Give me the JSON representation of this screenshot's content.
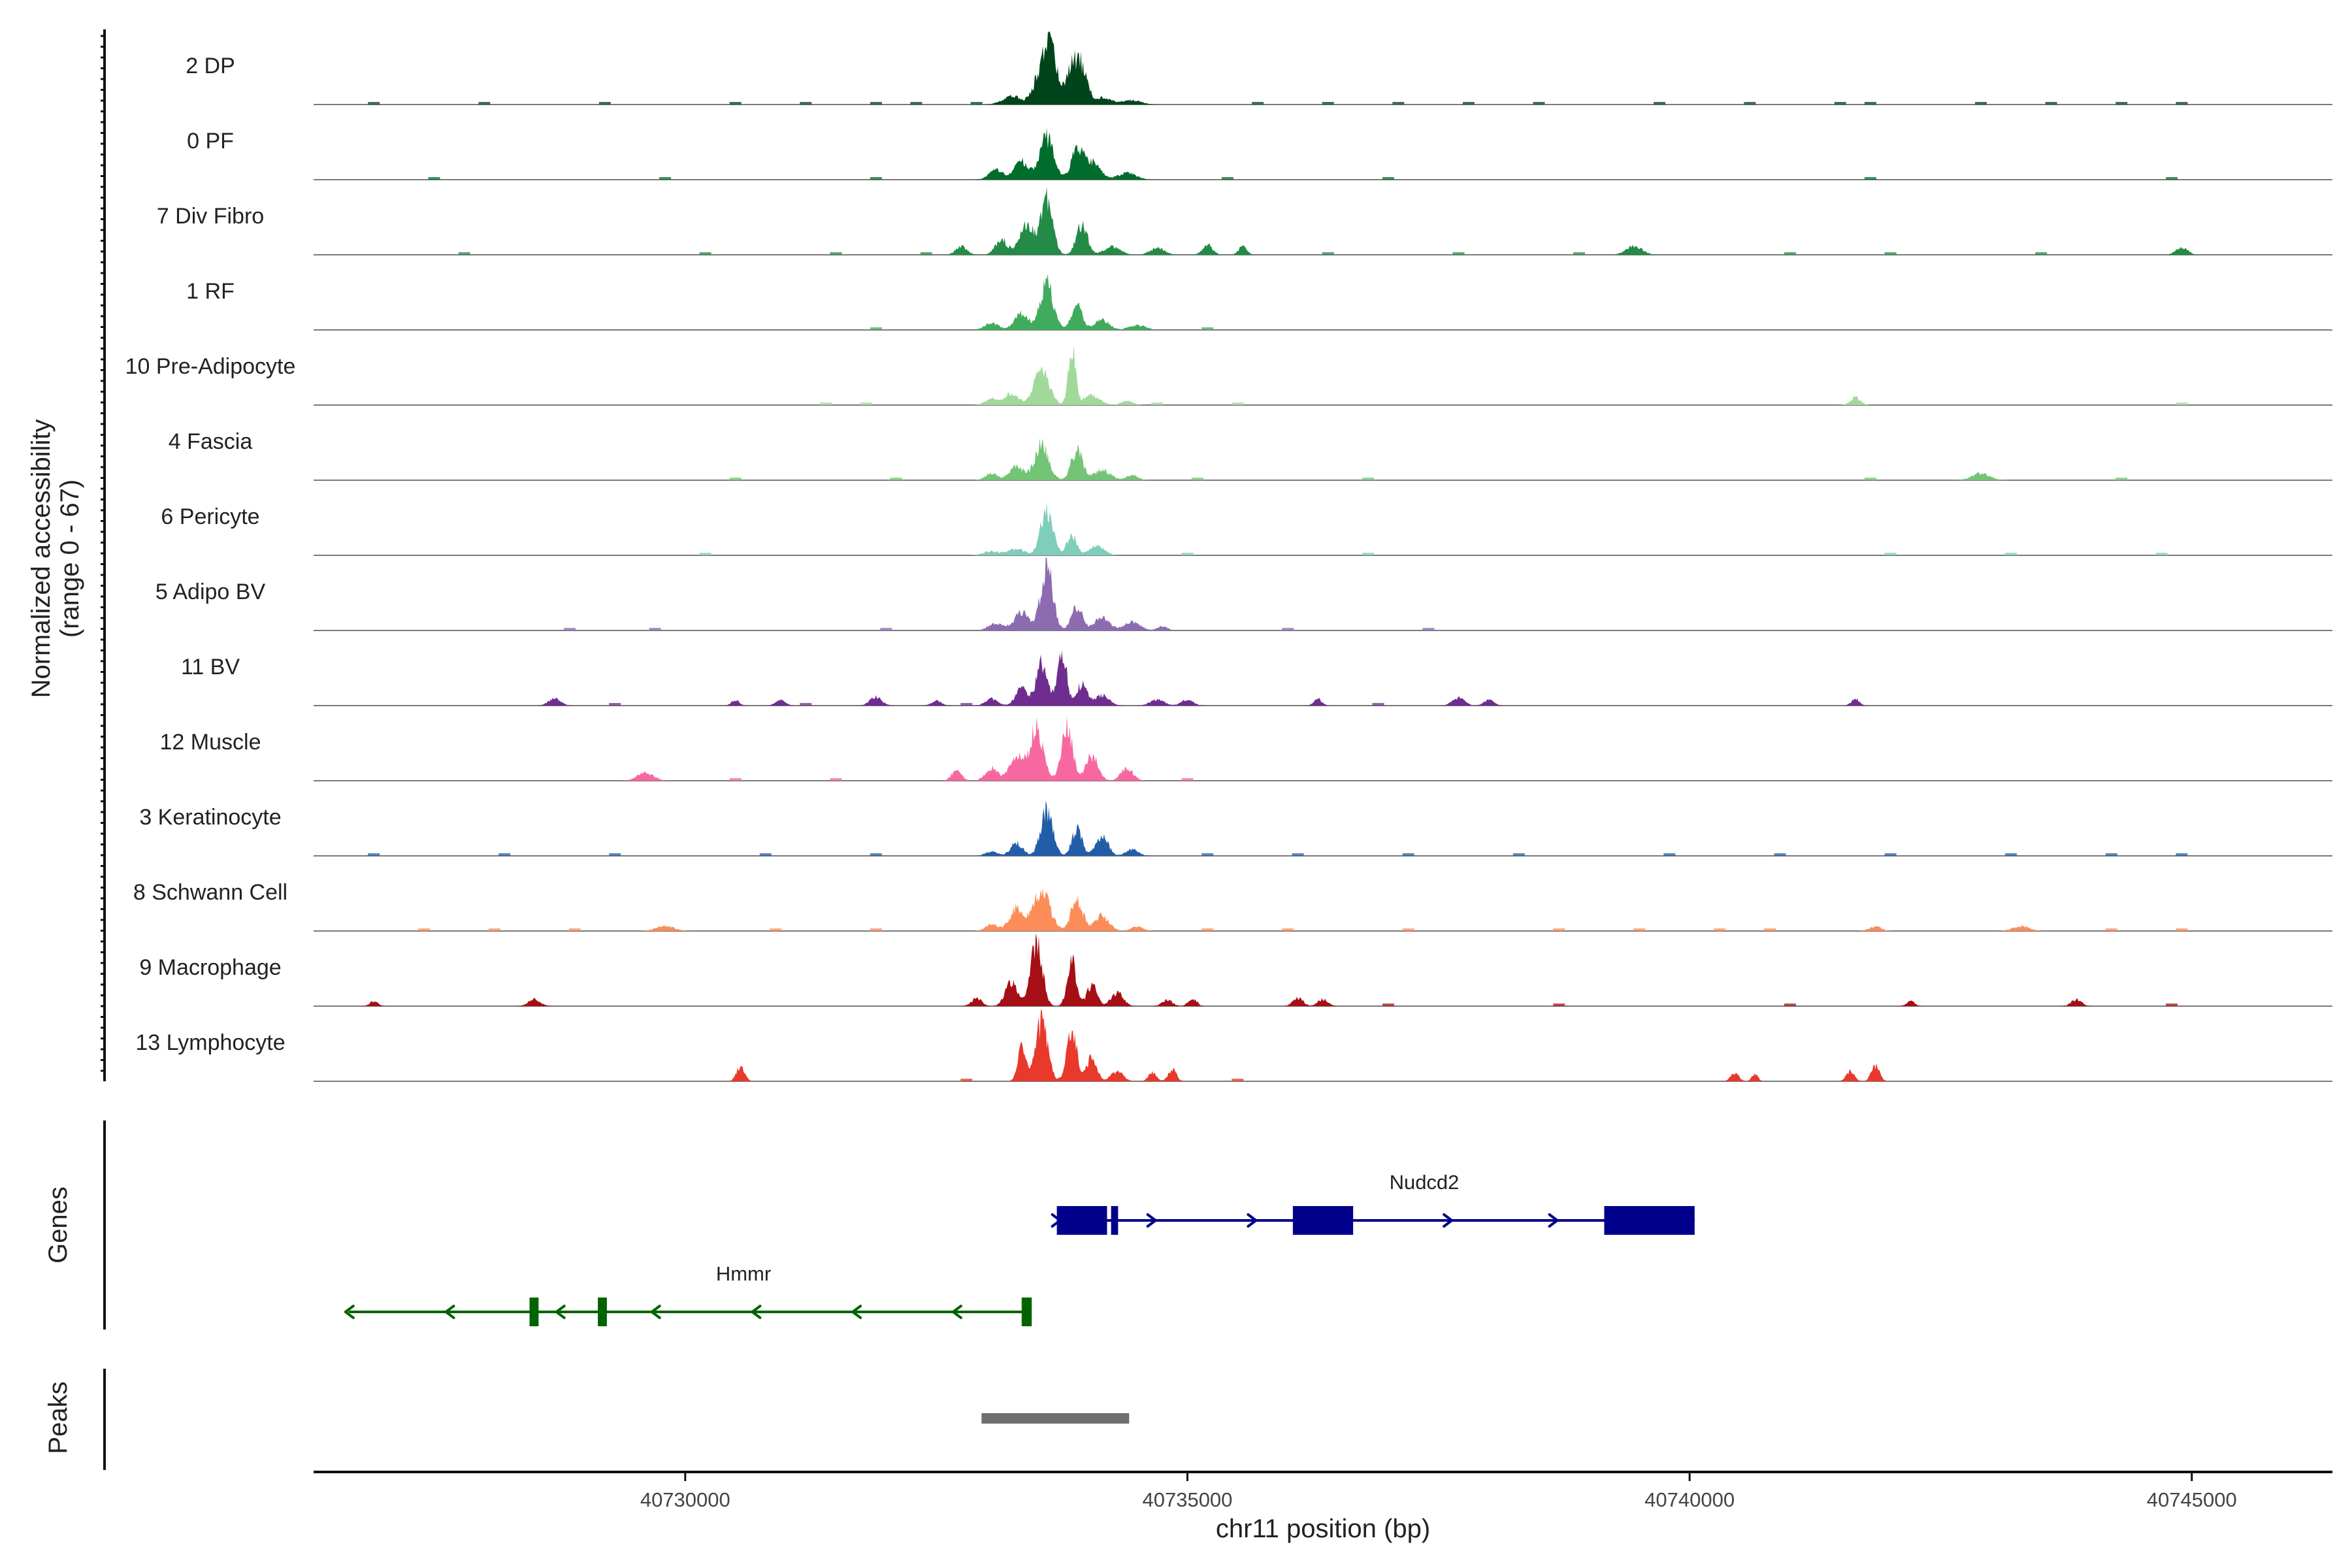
{
  "chart_data": {
    "type": "area",
    "title": "",
    "ylabel_line1": "Normalized accessibility",
    "ylabel_line2": "(range 0 - 67)",
    "y_range": [
      0,
      67
    ],
    "xlabel": "chr11 position (bp)",
    "chromosome": "chr11",
    "xlim": [
      40726300,
      40746400
    ],
    "x_ticks": [
      40730000,
      40735000,
      40740000,
      40745000
    ],
    "x_tick_labels": [
      "40730000",
      "40735000",
      "40740000",
      "40745000"
    ],
    "genes_label": "Genes",
    "peaks_label": "Peaks",
    "tracks": [
      {
        "name": "2 DP",
        "color": "#00441b",
        "peaks": [
          [
            40733550,
            40,
            75
          ],
          [
            40733650,
            58,
            60
          ],
          [
            40733850,
            45,
            60
          ],
          [
            40733950,
            36,
            55
          ],
          [
            40733250,
            10,
            90
          ],
          [
            40734150,
            8,
            100
          ],
          [
            40734450,
            5,
            90
          ]
        ],
        "noise": [
          40726900,
          40728000,
          40729200,
          40730500,
          40731200,
          40731900,
          40732300,
          40732900,
          40735700,
          40736400,
          40737100,
          40737800,
          40738500,
          40739700,
          40740600,
          40741500,
          40741800,
          40742900,
          40743600,
          40744300,
          40744900
        ]
      },
      {
        "name": "0 PF",
        "color": "#006d2c",
        "peaks": [
          [
            40733600,
            50,
            70
          ],
          [
            40733350,
            22,
            70
          ],
          [
            40733900,
            34,
            60
          ],
          [
            40734050,
            20,
            80
          ],
          [
            40733100,
            12,
            70
          ],
          [
            40734400,
            8,
            90
          ]
        ],
        "noise": [
          40727500,
          40729800,
          40731900,
          40735400,
          40737000,
          40741800,
          40744800
        ]
      },
      {
        "name": "7 Div Fibro",
        "color": "#238b45",
        "peaks": [
          [
            40733600,
            65,
            60
          ],
          [
            40733400,
            35,
            70
          ],
          [
            40733950,
            36,
            55
          ],
          [
            40733150,
            18,
            60
          ],
          [
            40732750,
            10,
            55
          ],
          [
            40734250,
            10,
            80
          ],
          [
            40734700,
            8,
            70
          ],
          [
            40735200,
            12,
            50
          ],
          [
            40735550,
            10,
            40
          ],
          [
            40739450,
            10,
            80
          ],
          [
            40744900,
            9,
            60
          ]
        ],
        "noise": [
          40727800,
          40730200,
          40731500,
          40732400,
          40736400,
          40737700,
          40738900,
          40741000,
          40742000,
          40743500
        ]
      },
      {
        "name": "1 RF",
        "color": "#41ab5d",
        "peaks": [
          [
            40733600,
            55,
            65
          ],
          [
            40733350,
            20,
            70
          ],
          [
            40733900,
            28,
            55
          ],
          [
            40734150,
            12,
            70
          ],
          [
            40733050,
            8,
            70
          ],
          [
            40734500,
            6,
            80
          ]
        ],
        "noise": [
          40731900,
          40735200
        ]
      },
      {
        "name": "10 Pre-Adipocyte",
        "color": "#a1d99b",
        "peaks": [
          [
            40733550,
            42,
            75
          ],
          [
            40733850,
            72,
            35
          ],
          [
            40733250,
            14,
            70
          ],
          [
            40733050,
            8,
            60
          ],
          [
            40734050,
            12,
            80
          ],
          [
            40734400,
            5,
            60
          ],
          [
            40741650,
            9,
            50
          ]
        ],
        "noise": [
          40731400,
          40731800,
          40734700,
          40735500,
          40744900
        ]
      },
      {
        "name": "4 Fascia",
        "color": "#74c476",
        "peaks": [
          [
            40733550,
            42,
            70
          ],
          [
            40733900,
            36,
            55
          ],
          [
            40733300,
            16,
            70
          ],
          [
            40734150,
            12,
            80
          ],
          [
            40733050,
            8,
            60
          ],
          [
            40734450,
            6,
            60
          ],
          [
            40742900,
            8,
            90
          ]
        ],
        "noise": [
          40730500,
          40732100,
          40735100,
          40736800,
          40741800,
          40744300
        ]
      },
      {
        "name": "6 Pericyte",
        "color": "#7fcdbb",
        "peaks": [
          [
            40733600,
            55,
            60
          ],
          [
            40733850,
            24,
            50
          ],
          [
            40734100,
            12,
            70
          ],
          [
            40733300,
            8,
            80
          ],
          [
            40733050,
            5,
            80
          ]
        ],
        "noise": [
          40730200,
          40735000,
          40736800,
          40742000,
          40743200,
          40744700
        ]
      },
      {
        "name": "5 Adipo BV",
        "color": "#8c6bb1",
        "peaks": [
          [
            40733600,
            75,
            60
          ],
          [
            40733900,
            28,
            55
          ],
          [
            40733350,
            22,
            70
          ],
          [
            40734150,
            16,
            70
          ],
          [
            40734450,
            10,
            80
          ],
          [
            40733100,
            8,
            80
          ],
          [
            40734750,
            5,
            50
          ]
        ],
        "noise": [
          40728850,
          40729700,
          40732000,
          40736000,
          40737400
        ]
      },
      {
        "name": "11 BV",
        "color": "#6e2d8f",
        "peaks": [
          [
            40733550,
            52,
            55
          ],
          [
            40733750,
            68,
            45
          ],
          [
            40733350,
            20,
            60
          ],
          [
            40733950,
            26,
            50
          ],
          [
            40734150,
            12,
            70
          ],
          [
            40733050,
            8,
            60
          ],
          [
            40728700,
            8,
            60
          ],
          [
            40730500,
            6,
            40
          ],
          [
            40730950,
            6,
            50
          ],
          [
            40731900,
            10,
            60
          ],
          [
            40732500,
            6,
            50
          ],
          [
            40734700,
            7,
            70
          ],
          [
            40735000,
            7,
            60
          ],
          [
            40736300,
            8,
            40
          ],
          [
            40737700,
            9,
            60
          ],
          [
            40738000,
            7,
            50
          ],
          [
            40741650,
            8,
            40
          ]
        ],
        "noise": [
          40729300,
          40731200,
          40732800,
          40736900
        ]
      },
      {
        "name": "12 Muscle",
        "color": "#f768a1",
        "peaks": [
          [
            40733500,
            62,
            65
          ],
          [
            40733800,
            65,
            55
          ],
          [
            40733300,
            30,
            70
          ],
          [
            40734050,
            30,
            60
          ],
          [
            40733050,
            15,
            60
          ],
          [
            40734400,
            15,
            60
          ],
          [
            40732700,
            12,
            50
          ],
          [
            40729600,
            10,
            80
          ]
        ],
        "noise": [
          40730500,
          40731500,
          40735000
        ]
      },
      {
        "name": "3 Keratinocyte",
        "color": "#225ea8",
        "peaks": [
          [
            40733600,
            55,
            60
          ],
          [
            40733300,
            15,
            60
          ],
          [
            40733900,
            32,
            50
          ],
          [
            40734150,
            24,
            60
          ],
          [
            40734450,
            8,
            60
          ],
          [
            40733050,
            5,
            60
          ]
        ],
        "noise": [
          40726900,
          40728200,
          40729300,
          40730800,
          40731900,
          40735200,
          40736100,
          40737200,
          40738300,
          40739800,
          40740900,
          40742000,
          40743200,
          40744200,
          40744900
        ]
      },
      {
        "name": "8 Schwann Cell",
        "color": "#fc8d59",
        "peaks": [
          [
            40733550,
            50,
            80
          ],
          [
            40733300,
            26,
            70
          ],
          [
            40733900,
            36,
            60
          ],
          [
            40734150,
            18,
            70
          ],
          [
            40733050,
            8,
            60
          ],
          [
            40734500,
            5,
            60
          ],
          [
            40729800,
            6,
            90
          ],
          [
            40743300,
            6,
            80
          ],
          [
            40741850,
            5,
            60
          ]
        ],
        "noise": [
          40727400,
          40728100,
          40728900,
          40730900,
          40731900,
          40735200,
          40736000,
          40737200,
          40738700,
          40739500,
          40740300,
          40740800,
          40744200,
          40744900
        ]
      },
      {
        "name": "9 Macrophage",
        "color": "#a50f15",
        "peaks": [
          [
            40733500,
            80,
            55
          ],
          [
            40733250,
            30,
            60
          ],
          [
            40733850,
            52,
            45
          ],
          [
            40734050,
            25,
            50
          ],
          [
            40734300,
            16,
            60
          ],
          [
            40732900,
            10,
            50
          ],
          [
            40734800,
            8,
            50
          ],
          [
            40735050,
            10,
            40
          ],
          [
            40736100,
            10,
            50
          ],
          [
            40736350,
            8,
            50
          ],
          [
            40726900,
            6,
            40
          ],
          [
            40728500,
            8,
            60
          ],
          [
            40742200,
            6,
            40
          ],
          [
            40743850,
            8,
            50
          ]
        ],
        "noise": [
          40737000,
          40738700,
          40741000,
          40744800
        ]
      },
      {
        "name": "13 Lymphocyte",
        "color": "#e8392c",
        "peaks": [
          [
            40733550,
            70,
            60
          ],
          [
            40733850,
            60,
            50
          ],
          [
            40733350,
            40,
            40
          ],
          [
            40734050,
            30,
            50
          ],
          [
            40734300,
            12,
            60
          ],
          [
            40734650,
            10,
            40
          ],
          [
            40734850,
            14,
            40
          ],
          [
            40730550,
            18,
            40
          ],
          [
            40740450,
            10,
            40
          ],
          [
            40740650,
            9,
            30
          ],
          [
            40741600,
            12,
            40
          ],
          [
            40741850,
            18,
            40
          ]
        ],
        "noise": [
          40732800,
          40735500
        ]
      }
    ],
    "genes": [
      {
        "name": "Nudcd2",
        "strand": "+",
        "start": 40733700,
        "end": 40740050,
        "color": "#00008b",
        "exons": [
          [
            40733700,
            40734200
          ],
          [
            40734240,
            40734310
          ],
          [
            40736050,
            40736650
          ],
          [
            40739150,
            40740050
          ]
        ],
        "arrows": [
          40733700,
          40734650,
          40735650,
          40737600,
          40738650
        ]
      },
      {
        "name": "Hmmr",
        "strand": "-",
        "start": 40726650,
        "end": 40733450,
        "color": "#006400",
        "exons": [
          [
            40728450,
            40728540
          ],
          [
            40729130,
            40729220
          ],
          [
            40733350,
            40733450
          ]
        ],
        "arrows": [
          40726650,
          40727650,
          40728750,
          40729700,
          40730700,
          40731700,
          40732700
        ]
      }
    ],
    "peak_regions": [
      [
        40732950,
        40734420
      ]
    ],
    "peak_color": "#707070"
  }
}
